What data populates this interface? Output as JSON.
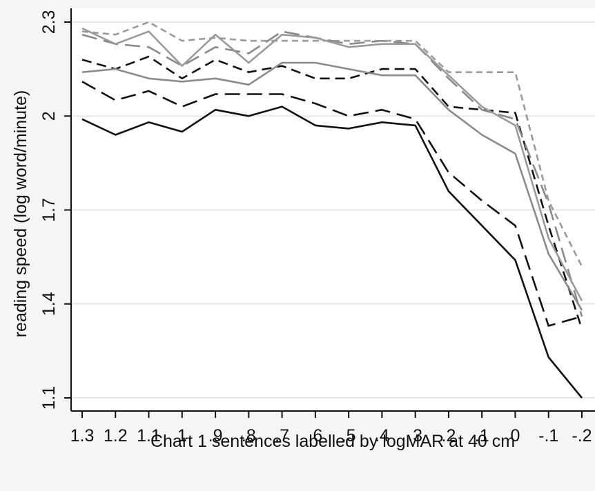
{
  "chart_data": {
    "type": "line",
    "title": "",
    "xlabel": "Chart 1 sentences labelled by logMAR at 40 cm",
    "ylabel": "reading speed (log word/minute)",
    "x_tick_labels": [
      "1.3",
      "1.2",
      "1.1",
      "1",
      ".9",
      ".8",
      ".7",
      ".6",
      ".5",
      ".4",
      ".3",
      ".2",
      ".1",
      "0",
      "-.1",
      "-.2"
    ],
    "x": [
      1.3,
      1.2,
      1.1,
      1.0,
      0.9,
      0.8,
      0.7,
      0.6,
      0.5,
      0.4,
      0.3,
      0.2,
      0.1,
      0.0,
      -0.1,
      -0.2
    ],
    "y_ticks": [
      1.1,
      1.4,
      1.7,
      2.0,
      2.3
    ],
    "y_tick_labels": [
      "1.1",
      "1.4",
      "1.7",
      "2",
      "2.3"
    ],
    "xlim": [
      1.3,
      -0.2
    ],
    "ylim": [
      1.09,
      2.36
    ],
    "grid": "horizontal",
    "legend": "none",
    "series": [
      {
        "color": "#111111",
        "dash": "solid",
        "values": [
          1.99,
          1.94,
          1.98,
          1.95,
          2.02,
          2.0,
          2.03,
          1.97,
          1.96,
          1.98,
          1.97,
          1.76,
          1.65,
          1.54,
          1.23,
          1.1
        ]
      },
      {
        "color": "#111111",
        "dash": "long",
        "values": [
          2.11,
          2.05,
          2.08,
          2.03,
          2.07,
          2.07,
          2.07,
          2.04,
          2.0,
          2.02,
          1.99,
          1.82,
          1.73,
          1.65,
          1.33,
          1.36
        ]
      },
      {
        "color": "#111111",
        "dash": "medium",
        "values": [
          2.18,
          2.15,
          2.19,
          2.12,
          2.18,
          2.14,
          2.16,
          2.12,
          2.12,
          2.15,
          2.15,
          2.03,
          2.02,
          2.01,
          1.65,
          1.32
        ]
      },
      {
        "color": "#8a8a8a",
        "dash": "solid",
        "values": [
          2.14,
          2.15,
          2.12,
          2.11,
          2.12,
          2.1,
          2.17,
          2.17,
          2.15,
          2.13,
          2.13,
          2.02,
          1.94,
          1.88,
          1.56,
          1.38
        ]
      },
      {
        "color": "#8a8a8a",
        "dash": "long",
        "values": [
          2.26,
          2.23,
          2.22,
          2.16,
          2.22,
          2.2,
          2.27,
          2.25,
          2.23,
          2.24,
          2.23,
          2.12,
          2.02,
          1.99,
          1.72,
          1.36
        ]
      },
      {
        "color": "#9a9a9a",
        "dash": "solid",
        "values": [
          2.28,
          2.23,
          2.27,
          2.16,
          2.26,
          2.17,
          2.26,
          2.25,
          2.22,
          2.23,
          2.23,
          2.13,
          2.03,
          1.97,
          1.61,
          1.41
        ]
      },
      {
        "color": "#9a9a9a",
        "dash": "short",
        "values": [
          2.27,
          2.26,
          2.3,
          2.24,
          2.25,
          2.24,
          2.24,
          2.24,
          2.24,
          2.24,
          2.24,
          2.14,
          2.14,
          2.14,
          1.73,
          1.52
        ]
      }
    ]
  }
}
